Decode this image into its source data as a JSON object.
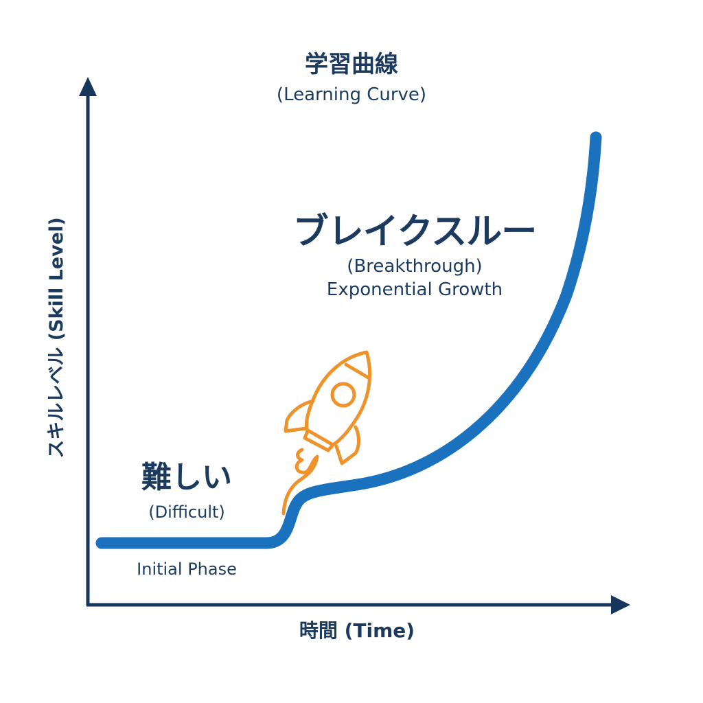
{
  "title": {
    "ja": "学習曲線",
    "en": "(Learning Curve)"
  },
  "axes": {
    "x_label": "時間 (Time)",
    "y_label": "スキルレベル (Skill Level)"
  },
  "annotations": {
    "difficult_ja": "難しい",
    "difficult_en": "(Difficult)",
    "initial_phase": "Initial Phase",
    "breakthrough_ja": "ブレイクスルー",
    "breakthrough_en": "(Breakthrough)",
    "growth": "Exponential Growth"
  },
  "icons": {
    "rocket": "rocket-icon"
  },
  "colors": {
    "text": "#1b3a5e",
    "curve": "#1a72bf",
    "rocket": "#f0922a",
    "axis": "#17365c"
  }
}
